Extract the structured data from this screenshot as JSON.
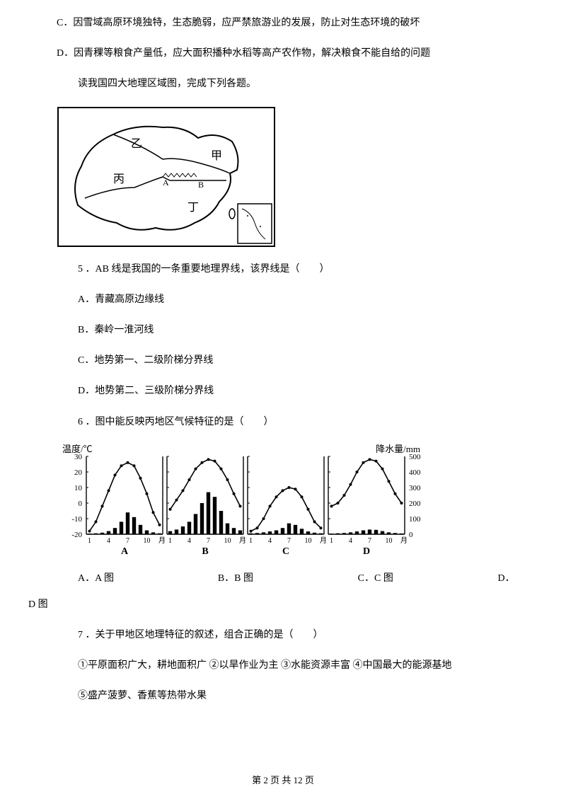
{
  "options_top": {
    "c": "C．因雪域高原环境独特，生态脆弱，应严禁旅游业的发展，防止对生态环境的破坏",
    "d": "D．因青稞等粮食产量低，应大面积播种水稻等高产农作物，解决粮食不能自给的问题"
  },
  "instruction": "读我国四大地理区域图，完成下列各题。",
  "map": {
    "labels": {
      "jia": "甲",
      "yi": "乙",
      "bing": "丙",
      "ding": "丁",
      "a": "A",
      "b": "B"
    }
  },
  "q5": {
    "stem": "5 ．AB 线是我国的一条重要地理界线，该界线是（　　）",
    "a": "A．青藏高原边缘线",
    "b": "B．秦岭一淮河线",
    "c": "C．地势第一、二级阶梯分界线",
    "d": "D．地势第二、三级阶梯分界线"
  },
  "q6": {
    "stem": "6 ．图中能反映丙地区气候特征的是（　　）",
    "a": "A．A 图",
    "b": "B．B 图",
    "c": "C．C 图",
    "d": "D．",
    "d2": "D 图"
  },
  "q7": {
    "stem": "7 ．关于甲地区地理特征的叙述，组合正确的是（　　）",
    "line1": "①平原面积广大，耕地面积广  ②以旱作业为主  ③水能资源丰富  ④中国最大的能源基地",
    "line2": "⑤盛产菠萝、香蕉等热带水果"
  },
  "chart": {
    "temp_label": "温度/℃",
    "precip_label": "降水量/mm",
    "y_left": [
      "30",
      "20",
      "10",
      "0",
      "-10",
      "-20"
    ],
    "y_right": [
      "500",
      "400",
      "300",
      "200",
      "100",
      "0"
    ],
    "x_ticks": [
      "1",
      "4",
      "7",
      "10",
      "月"
    ],
    "panels": [
      "A",
      "B",
      "C",
      "D"
    ],
    "tempA": [
      -18,
      -12,
      -2,
      8,
      18,
      24,
      26,
      24,
      16,
      6,
      -6,
      -14
    ],
    "tempB": [
      -4,
      2,
      8,
      15,
      22,
      26,
      28,
      27,
      22,
      15,
      6,
      -2
    ],
    "tempC": [
      -18,
      -16,
      -10,
      -2,
      4,
      8,
      10,
      9,
      4,
      -4,
      -12,
      -16
    ],
    "tempD": [
      -2,
      0,
      5,
      12,
      20,
      26,
      28,
      27,
      22,
      14,
      6,
      0
    ],
    "rainA": [
      4,
      6,
      10,
      20,
      40,
      80,
      140,
      110,
      60,
      25,
      12,
      6
    ],
    "rainB": [
      20,
      30,
      50,
      80,
      130,
      200,
      270,
      240,
      150,
      70,
      40,
      25
    ],
    "rainC": [
      6,
      8,
      12,
      18,
      25,
      40,
      70,
      60,
      35,
      18,
      10,
      6
    ],
    "rainD": [
      4,
      6,
      8,
      12,
      18,
      25,
      30,
      28,
      20,
      12,
      8,
      5
    ],
    "colors": {
      "line": "#000",
      "bar": "#000",
      "axis": "#000",
      "bg": "#fff"
    }
  },
  "footer": {
    "text": "第 2 页 共 12 页"
  }
}
